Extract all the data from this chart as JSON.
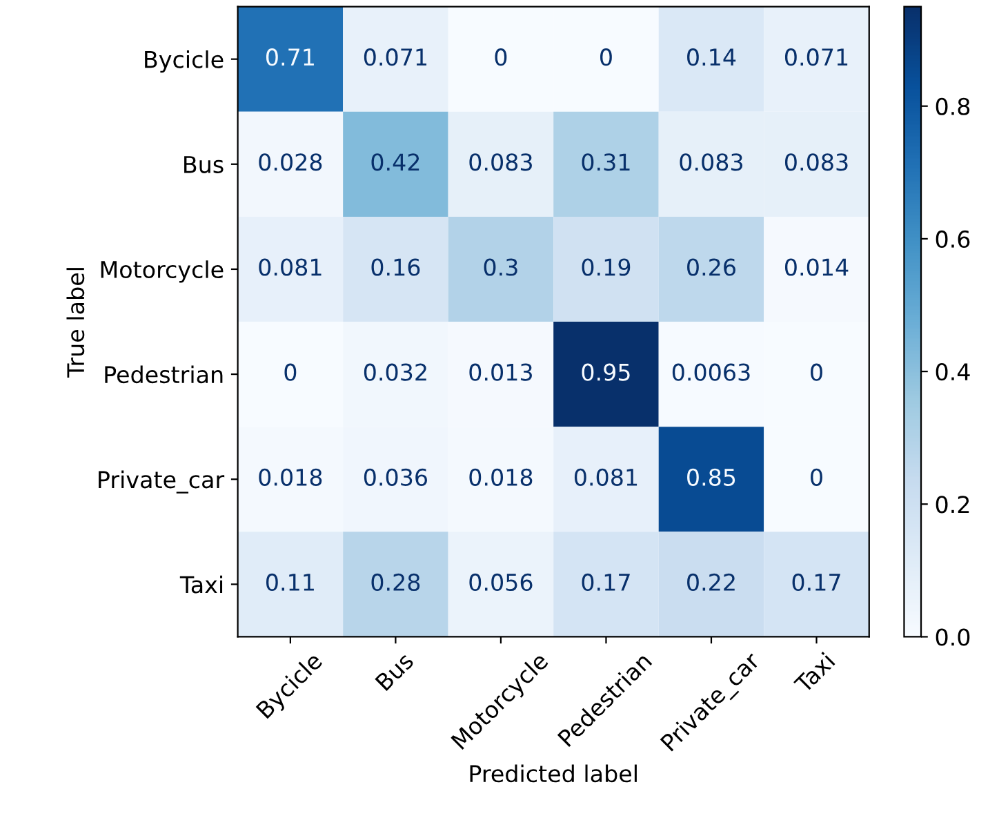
{
  "chart_data": {
    "type": "heatmap",
    "xlabel": "Predicted label",
    "ylabel": "True label",
    "categories": [
      "Bycicle",
      "Bus",
      "Motorcycle",
      "Pedestrian",
      "Private_car",
      "Taxi"
    ],
    "y_categories": [
      "Bycicle",
      "Bus",
      "Motorcycle",
      "Pedestrian",
      "Private_car",
      "Taxi"
    ],
    "cells": [
      [
        0.71,
        0.071,
        0,
        0,
        0.14,
        0.071
      ],
      [
        0.028,
        0.42,
        0.083,
        0.31,
        0.083,
        0.083
      ],
      [
        0.081,
        0.16,
        0.3,
        0.19,
        0.26,
        0.014
      ],
      [
        0,
        0.032,
        0.013,
        0.95,
        0.0063,
        0
      ],
      [
        0.018,
        0.036,
        0.018,
        0.081,
        0.85,
        0
      ],
      [
        0.11,
        0.28,
        0.056,
        0.17,
        0.22,
        0.17
      ]
    ],
    "clim": [
      0,
      0.95
    ],
    "cticks": [
      {
        "value": 0,
        "label": "0.0"
      },
      {
        "value": 0.2,
        "label": "0.2"
      },
      {
        "value": 0.4,
        "label": "0.4"
      },
      {
        "value": 0.6,
        "label": "0.6"
      },
      {
        "value": 0.8,
        "label": "0.8"
      }
    ],
    "data_labels": true
  }
}
